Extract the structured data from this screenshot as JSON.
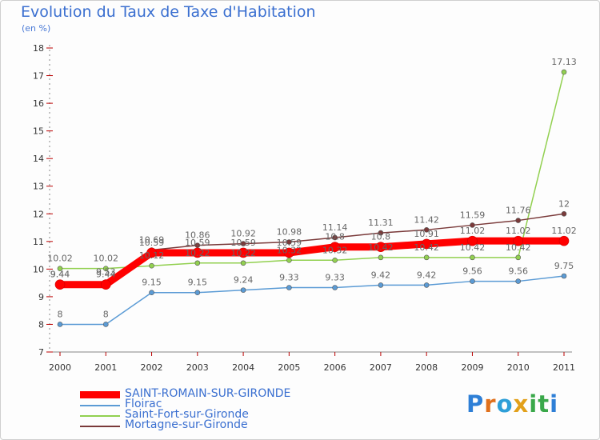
{
  "title": "Evolution du Taux de Taxe d'Habitation",
  "subtitle": "(en %)",
  "brand": {
    "letters": [
      "P",
      "r",
      "o",
      "x",
      "i",
      "t",
      "i"
    ],
    "colors": [
      "#2e7fd6",
      "#e0701c",
      "#2e9fd8",
      "#e2a01a",
      "#3aa84a",
      "#3aa84a",
      "#2e7fd6"
    ]
  },
  "chart_data": {
    "type": "line",
    "x": [
      "2000",
      "2001",
      "2002",
      "2003",
      "2004",
      "2005",
      "2006",
      "2007",
      "2008",
      "2009",
      "2010",
      "2011"
    ],
    "ylim": [
      7,
      18
    ],
    "yticks": [
      "7",
      "8",
      "9",
      "10",
      "11",
      "12",
      "13",
      "14",
      "15",
      "16",
      "17",
      "18"
    ],
    "grid": false,
    "legend_position": "bottom-left",
    "series": [
      {
        "name": "SAINT-ROMAIN-SUR-GIRONDE",
        "color": "#ff0000",
        "width": 9,
        "values": [
          9.44,
          9.44,
          10.59,
          10.59,
          10.59,
          10.59,
          10.8,
          10.8,
          10.91,
          11.02,
          11.02,
          11.02
        ],
        "labels": [
          "9.44",
          "9.44",
          "10.59",
          "10.59",
          "10.59",
          "10.59",
          "10.8",
          "10.8",
          "10.91",
          "11.02",
          "11.02",
          "11.02"
        ]
      },
      {
        "name": "Floirac",
        "color": "#5b9bd5",
        "width": 1.5,
        "values": [
          8,
          8,
          9.15,
          9.15,
          9.24,
          9.33,
          9.33,
          9.42,
          9.42,
          9.56,
          9.56,
          9.75
        ],
        "labels": [
          "8",
          "8",
          "9.15",
          "9.15",
          "9.24",
          "9.33",
          "9.33",
          "9.42",
          "9.42",
          "9.56",
          "9.56",
          "9.75"
        ]
      },
      {
        "name": "Saint-Fort-sur-Gironde",
        "color": "#92d050",
        "width": 1.5,
        "values": [
          10.02,
          10.02,
          10.12,
          10.22,
          10.22,
          10.32,
          10.32,
          10.42,
          10.42,
          10.42,
          10.42,
          17.13
        ],
        "labels": [
          "10.02",
          "10.02",
          "10.12",
          "10.22",
          "10.22",
          "10.32",
          "10.32",
          "10.42",
          "10.42",
          "10.42",
          "10.42",
          "17.13"
        ]
      },
      {
        "name": "Mortagne-sur-Gironde",
        "color": "#7a3a3a",
        "width": 1.5,
        "values": [
          9.44,
          9.53,
          10.69,
          10.86,
          10.92,
          10.98,
          11.14,
          11.31,
          11.42,
          11.59,
          11.76,
          12
        ],
        "labels": [
          "9.44",
          "9.53",
          "10.69",
          "10.86",
          "10.92",
          "10.98",
          "11.14",
          "11.31",
          "11.42",
          "11.59",
          "11.76",
          "12"
        ]
      }
    ]
  }
}
